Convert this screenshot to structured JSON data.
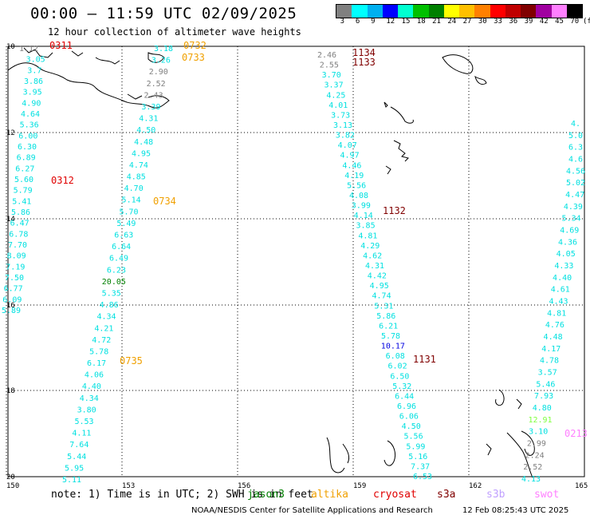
{
  "header": {
    "title": "00:00 – 11:59 UTC 02/09/2025",
    "subtitle": "12 hour collection of altimeter wave heights"
  },
  "colorbar": {
    "unit_label": "(ft)",
    "labels": [
      "3",
      "6",
      "9",
      "12",
      "15",
      "18",
      "21",
      "24",
      "27",
      "30",
      "33",
      "36",
      "39",
      "42",
      "45",
      "70"
    ],
    "colors": [
      "#808080",
      "#00ffff",
      "#00b0f0",
      "#0000ff",
      "#00ffd0",
      "#00c000",
      "#008000",
      "#ffff00",
      "#ffc000",
      "#ff8000",
      "#ff0000",
      "#c00000",
      "#800000",
      "#a000a0",
      "#ff80ff",
      "#000000"
    ]
  },
  "map": {
    "lat_labels": [
      "10",
      "12",
      "14",
      "16",
      "18",
      "20"
    ],
    "lon_labels": [
      "150",
      "153",
      "156",
      "159",
      "162",
      "165"
    ],
    "time_labels": [
      {
        "text": "0311",
        "color": "#e00000"
      },
      {
        "text": "0312",
        "color": "#e00000"
      },
      {
        "text": "0732",
        "color": "#f0a000"
      },
      {
        "text": "0733",
        "color": "#f0a000"
      },
      {
        "text": "0734",
        "color": "#f0a000"
      },
      {
        "text": "0735",
        "color": "#f0a000"
      },
      {
        "text": "1134",
        "color": "#800000"
      },
      {
        "text": "1133",
        "color": "#800000"
      },
      {
        "text": "1132",
        "color": "#800000"
      },
      {
        "text": "1131",
        "color": "#800000"
      },
      {
        "text": "0213",
        "color": "#ff80ff"
      }
    ],
    "tracks": [
      {
        "name": "track-0311",
        "values": [
          "1.12",
          "3.05",
          "3.7",
          "3.86",
          "3.95",
          "4.90",
          "4.64",
          "5.36",
          "6.00",
          "6.30",
          "6.89",
          "6.27",
          "5.60",
          "5.79",
          "5.41",
          "5.86",
          "6.47",
          "6.78",
          "7.70",
          "8.09",
          "7.19",
          "7.50",
          "6.77",
          "6.09",
          "5.89"
        ],
        "colors": [
          "#808080",
          "#00e0e0",
          "#00e0e0",
          "#00e0e0",
          "#00e0e0",
          "#00e0e0",
          "#00e0e0",
          "#00e0e0",
          "#00e0e0",
          "#00e0e0",
          "#00e0e0",
          "#00e0e0",
          "#00e0e0",
          "#00e0e0",
          "#00e0e0",
          "#00e0e0",
          "#00e0e0",
          "#00e0e0",
          "#00e0e0",
          "#00e0e0",
          "#00e0e0",
          "#00e0e0",
          "#00e0e0",
          "#00e0e0",
          "#00e0e0"
        ]
      },
      {
        "name": "track-0732",
        "values": [
          "3.18",
          "3.26",
          "2.90",
          "2.52",
          "2.43",
          "3.39",
          "4.31",
          "4.50",
          "4.48",
          "4.95",
          "4.74",
          "4.85",
          "4.70",
          "5.14",
          "5.70",
          "5.49",
          "6.63",
          "6.64",
          "6.49",
          "6.23",
          "20.05",
          "5.35",
          "4.86",
          "4.34",
          "4.21",
          "4.72",
          "5.78",
          "6.17",
          "4.06",
          "4.40",
          "4.34",
          "3.80",
          "5.53",
          "4.11",
          "7.64",
          "5.44",
          "5.95",
          "5.11"
        ],
        "colors": [
          "#00e0e0",
          "#00e0e0",
          "#808080",
          "#808080",
          "#808080",
          "#00e0e0",
          "#00e0e0",
          "#00e0e0",
          "#00e0e0",
          "#00e0e0",
          "#00e0e0",
          "#00e0e0",
          "#00e0e0",
          "#00e0e0",
          "#00e0e0",
          "#00e0e0",
          "#00e0e0",
          "#00e0e0",
          "#00e0e0",
          "#00e0e0",
          "#008000",
          "#00e0e0",
          "#00e0e0",
          "#00e0e0",
          "#00e0e0",
          "#00e0e0",
          "#00e0e0",
          "#00e0e0",
          "#00e0e0",
          "#00e0e0",
          "#00e0e0",
          "#00e0e0",
          "#00e0e0",
          "#00e0e0",
          "#00e0e0",
          "#00e0e0",
          "#00e0e0",
          "#00e0e0"
        ]
      },
      {
        "name": "track-1134",
        "values": [
          "2.46",
          "2.55",
          "3.70",
          "3.37",
          "4.25",
          "4.01",
          "3.73",
          "3.13",
          "3.82",
          "4.07",
          "4.97",
          "4.46",
          "4.19",
          "5.56",
          "4.08",
          "3.99",
          "4.14",
          "3.85",
          "4.81",
          "4.29",
          "4.62",
          "4.31",
          "4.42",
          "4.95",
          "4.74",
          "5.31",
          "5.86",
          "6.21",
          "5.78",
          "10.17",
          "6.08",
          "6.02",
          "6.50",
          "5.32",
          "6.44",
          "6.96",
          "6.06",
          "4.50",
          "5.56",
          "5.99",
          "5.16",
          "7.37",
          "6.53"
        ],
        "colors": [
          "#808080",
          "#808080",
          "#00e0e0",
          "#00e0e0",
          "#00e0e0",
          "#00e0e0",
          "#00e0e0",
          "#00e0e0",
          "#00e0e0",
          "#00e0e0",
          "#00e0e0",
          "#00e0e0",
          "#00e0e0",
          "#00e0e0",
          "#00e0e0",
          "#00e0e0",
          "#00e0e0",
          "#00e0e0",
          "#00e0e0",
          "#00e0e0",
          "#00e0e0",
          "#00e0e0",
          "#00e0e0",
          "#00e0e0",
          "#00e0e0",
          "#00e0e0",
          "#00e0e0",
          "#00e0e0",
          "#00e0e0",
          "#0000e0",
          "#00e0e0",
          "#00e0e0",
          "#00e0e0",
          "#00e0e0",
          "#00e0e0",
          "#00e0e0",
          "#00e0e0",
          "#00e0e0",
          "#00e0e0",
          "#00e0e0",
          "#00e0e0",
          "#00e0e0",
          "#00e0e0"
        ]
      },
      {
        "name": "track-0213",
        "values": [
          "4.",
          "5.0",
          "6.3",
          "4.6",
          "4.56",
          "5.02",
          "4.47",
          "4.39",
          "5.34",
          "4.69",
          "4.36",
          "4.05",
          "4.33",
          "4.40",
          "4.61",
          "4.43",
          "4.81",
          "4.76",
          "4.48",
          "4.17",
          "4.78",
          "3.57",
          "5.46",
          "7.93",
          "4.80",
          "12.91",
          "3.10",
          "2.99",
          "2.24",
          "2.52",
          "4.13"
        ],
        "colors": [
          "#00e0e0",
          "#00e0e0",
          "#00e0e0",
          "#00e0e0",
          "#00e0e0",
          "#00e0e0",
          "#00e0e0",
          "#00e0e0",
          "#00e0e0",
          "#00e0e0",
          "#00e0e0",
          "#00e0e0",
          "#00e0e0",
          "#00e0e0",
          "#00e0e0",
          "#00e0e0",
          "#00e0e0",
          "#00e0e0",
          "#00e0e0",
          "#00e0e0",
          "#00e0e0",
          "#00e0e0",
          "#00e0e0",
          "#00e0e0",
          "#00e0e0",
          "#80ff40",
          "#00e0e0",
          "#808080",
          "#808080",
          "#808080",
          "#00e0e0"
        ]
      }
    ]
  },
  "footer": {
    "note": "note:  1) Time is in UTC; 2) SWH is in feet",
    "legend": [
      {
        "text": "jason3",
        "color": "#008000"
      },
      {
        "text": "altika",
        "color": "#f0a000"
      },
      {
        "text": "cryosat",
        "color": "#e00000"
      },
      {
        "text": "s3a",
        "color": "#800000"
      },
      {
        "text": "s3b",
        "color": "#c0a0ff"
      },
      {
        "text": "swot",
        "color": "#ff80ff"
      }
    ],
    "credit": "NOAA/NESDIS Center for Satellite Applications and Research",
    "timestamp": "12 Feb 08:25:43 UTC 2025"
  }
}
